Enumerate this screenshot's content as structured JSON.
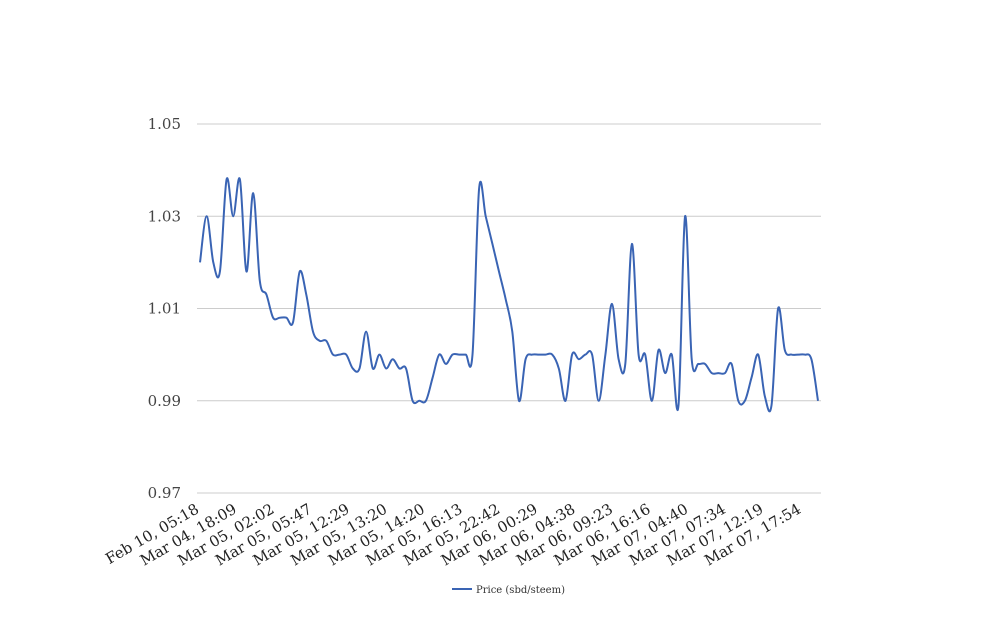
{
  "chart_data": {
    "type": "line",
    "title": "",
    "xlabel": "",
    "ylabel": "",
    "ylim": [
      0.97,
      1.05
    ],
    "yticks": [
      "0.97",
      "0.99",
      "1.01",
      "1.03",
      "1.05"
    ],
    "grid": true,
    "legend_position": "bottom-center",
    "x_tick_labels": [
      "Feb 10, 05:18",
      "Mar 04, 18:09",
      "Mar 05, 02:02",
      "Mar 05, 05:47",
      "Mar 05, 12:29",
      "Mar 05, 13:20",
      "Mar 05, 14:20",
      "Mar 05, 16:13",
      "Mar 05, 22:42",
      "Mar 06, 00:29",
      "Mar 06, 04:38",
      "Mar 06, 09:23",
      "Mar 06, 16:16",
      "Mar 07, 04:40",
      "Mar 07, 07:34",
      "Mar 07, 12:19",
      "Mar 07, 17:54"
    ],
    "series": [
      {
        "name": "Price (sbd/steem)",
        "color": "#3a64b4",
        "values": [
          1.02,
          1.03,
          1.02,
          1.018,
          1.038,
          1.03,
          1.038,
          1.018,
          1.035,
          1.016,
          1.013,
          1.008,
          1.008,
          1.008,
          1.007,
          1.018,
          1.013,
          1.005,
          1.003,
          1.003,
          1.0,
          1.0,
          1.0,
          0.997,
          0.997,
          1.005,
          0.997,
          1.0,
          0.997,
          0.999,
          0.997,
          0.997,
          0.99,
          0.99,
          0.99,
          0.995,
          1.0,
          0.998,
          1.0,
          1.0,
          1.0,
          1.0,
          1.036,
          1.03,
          1.024,
          1.018,
          1.012,
          1.005,
          0.99,
          0.999,
          1.0,
          1.0,
          1.0,
          1.0,
          0.997,
          0.99,
          1.0,
          0.999,
          1.0,
          1.0,
          0.99,
          1.0,
          1.011,
          0.999,
          0.998,
          1.024,
          1.0,
          1.0,
          0.99,
          1.001,
          0.996,
          1.0,
          0.989,
          1.03,
          0.999,
          0.998,
          0.998,
          0.996,
          0.996,
          0.996,
          0.998,
          0.99,
          0.99,
          0.995,
          1.0,
          0.991,
          0.989,
          1.01,
          1.001,
          1.0,
          1.0,
          1.0,
          0.999,
          0.99
        ]
      }
    ]
  }
}
